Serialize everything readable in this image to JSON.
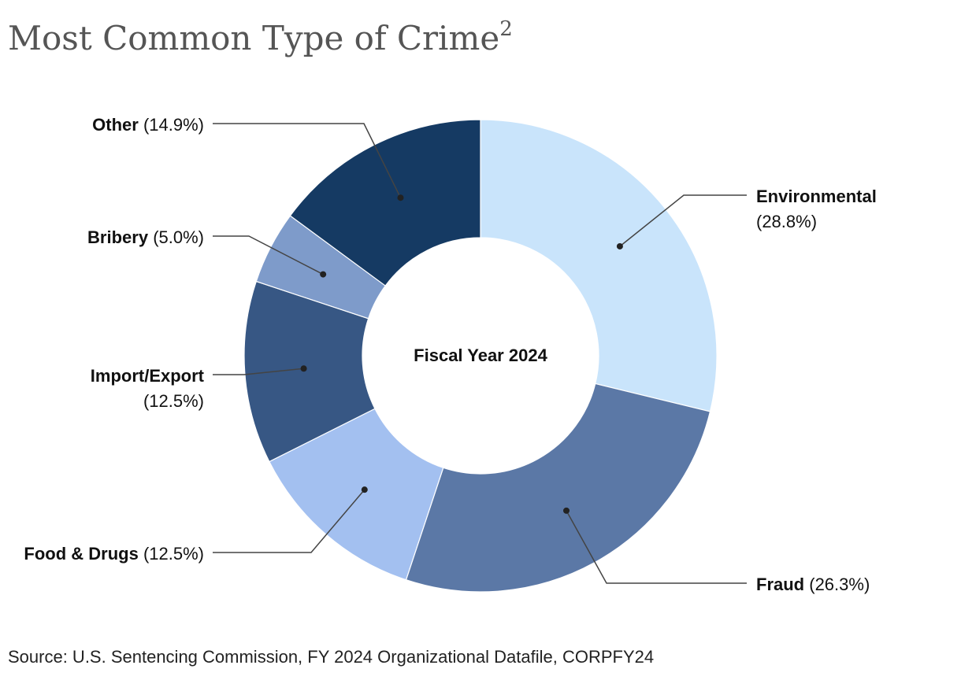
{
  "title": "Most Common Type of Crime",
  "title_superscript": "2",
  "source": "Source: U.S. Sentencing Commission, FY 2024 Organizational Datafile, CORPFY24",
  "chart_data": {
    "type": "pie",
    "donut": true,
    "center_label": "Fiscal Year 2024",
    "categories": [
      "Environmental",
      "Fraud",
      "Food & Drugs",
      "Import/Export",
      "Bribery",
      "Other"
    ],
    "values": [
      28.8,
      26.3,
      12.5,
      12.5,
      5.0,
      14.9
    ],
    "value_labels": [
      "(28.8%)",
      "(26.3%)",
      "(12.5%)",
      "(12.5%)",
      "(5.0%)",
      "(14.9%)"
    ],
    "colors": [
      "#c9e4fb",
      "#5b78a6",
      "#a3c0f0",
      "#375784",
      "#7e9bca",
      "#153a63"
    ],
    "legend": "callout labels"
  }
}
